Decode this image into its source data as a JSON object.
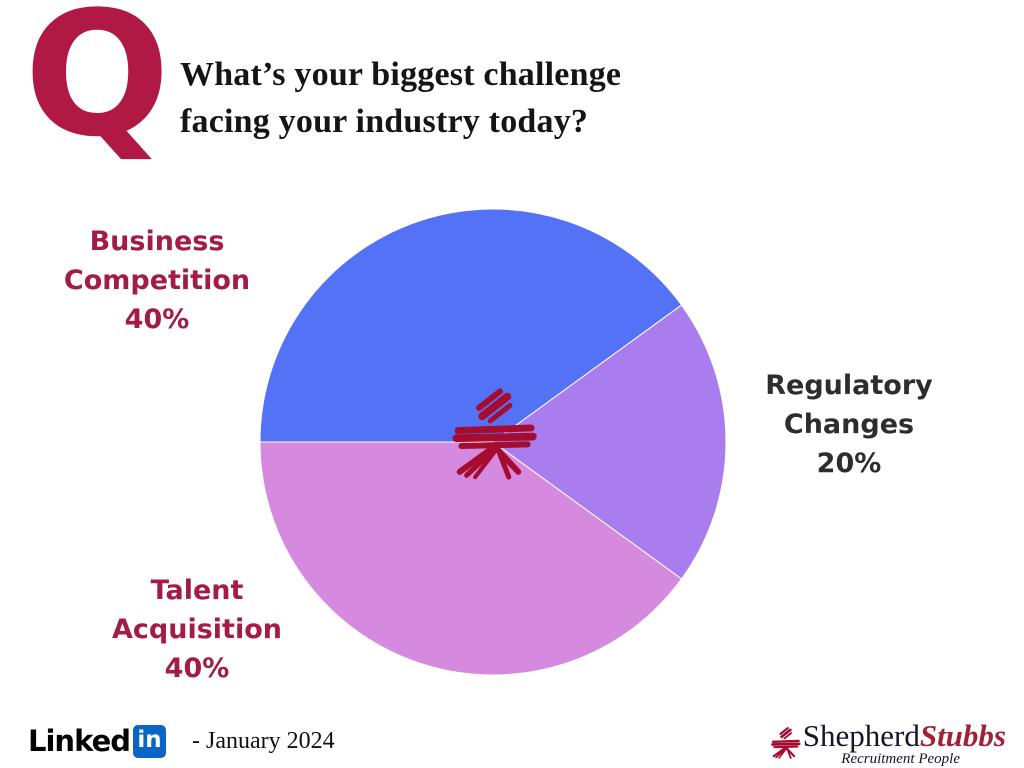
{
  "question": {
    "q_letter": "Q",
    "title_line1": "What’s your biggest challenge",
    "title_line2": "facing your industry today?"
  },
  "chart_data": {
    "type": "pie",
    "title": "What’s your biggest challenge facing your industry today?",
    "start_angle_deg": 270,
    "direction": "clockwise",
    "legend_position": "outside-labels",
    "slices": [
      {
        "label": "Business Competition",
        "line1": "Business",
        "line2": "Competition",
        "value_pct": 40,
        "pct_label": "40%",
        "color": "#5472F6",
        "label_color": "#A31C45"
      },
      {
        "label": "Regulatory Changes",
        "line1": "Regulatory",
        "line2": "Changes",
        "value_pct": 20,
        "pct_label": "20%",
        "color": "#A97DEE",
        "label_color": "#2D2D2D"
      },
      {
        "label": "Talent Acquisition",
        "line1": "Talent",
        "line2": "Acquisition",
        "value_pct": 40,
        "pct_label": "40%",
        "color": "#D58ADF",
        "label_color": "#A31C45"
      }
    ],
    "center_logo": "shepherd-stubbs-scribble-mark"
  },
  "footer": {
    "linkedin_word": "Linked",
    "linkedin_in": "in",
    "date_text": "- January 2024",
    "brand": {
      "name_part1": "Shepherd",
      "name_part2": "Stubbs",
      "tagline": "Recruitment People"
    }
  },
  "colors": {
    "q_crimson": "#B01944",
    "mark_crimson": "#A50C30",
    "title_text": "#151515",
    "linkedin_blue": "#0A66C2",
    "brand_dark": "#15152E",
    "brand_crimson": "#A32035"
  }
}
